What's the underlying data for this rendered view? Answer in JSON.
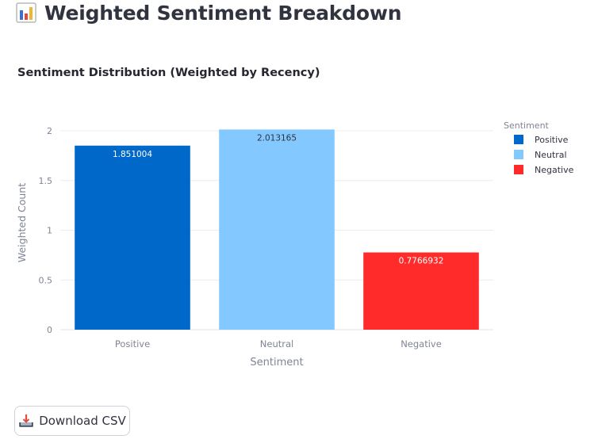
{
  "page": {
    "title": "Weighted Sentiment Breakdown",
    "title_icon": "bar-chart-icon"
  },
  "chart_data": {
    "type": "bar",
    "title": "Sentiment Distribution (Weighted by Recency)",
    "xlabel": "Sentiment",
    "ylabel": "Weighted Count",
    "categories": [
      "Positive",
      "Neutral",
      "Negative"
    ],
    "values": [
      1.851004,
      2.013165,
      0.7766932
    ],
    "data_labels": [
      "1.851004",
      "2.013165",
      "0.7766932"
    ],
    "colors": [
      "#0068c9",
      "#83c9ff",
      "#ff2b2b"
    ],
    "yticks": [
      0,
      0.5,
      1,
      1.5,
      2
    ],
    "ytick_labels": [
      "0",
      "0.5",
      "1",
      "1.5",
      "2"
    ],
    "ylim": [
      0,
      2.12
    ],
    "grid": true,
    "legend": {
      "title": "Sentiment",
      "position": "right",
      "entries": [
        "Positive",
        "Neutral",
        "Negative"
      ]
    }
  },
  "download": {
    "label": "Download CSV",
    "icon": "download-tray-icon"
  }
}
